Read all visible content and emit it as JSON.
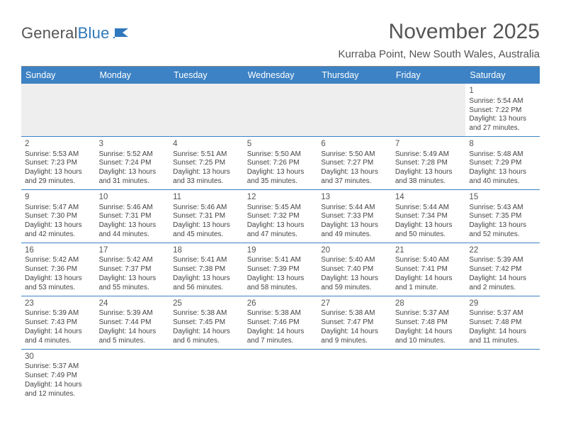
{
  "brand": {
    "part1": "General",
    "part2": "Blue"
  },
  "title": "November 2025",
  "location": "Kurraba Point, New South Wales, Australia",
  "colors": {
    "headerBar": "#3d82c4",
    "ruleBlue": "#3d82c4",
    "blankBg": "#eeeeee",
    "text": "#444",
    "title": "#555"
  },
  "dow": [
    "Sunday",
    "Monday",
    "Tuesday",
    "Wednesday",
    "Thursday",
    "Friday",
    "Saturday"
  ],
  "weeks": [
    [
      null,
      null,
      null,
      null,
      null,
      null,
      {
        "d": "1",
        "sr": "5:54 AM",
        "ss": "7:22 PM",
        "dl": "13 hours and 27 minutes."
      }
    ],
    [
      {
        "d": "2",
        "sr": "5:53 AM",
        "ss": "7:23 PM",
        "dl": "13 hours and 29 minutes."
      },
      {
        "d": "3",
        "sr": "5:52 AM",
        "ss": "7:24 PM",
        "dl": "13 hours and 31 minutes."
      },
      {
        "d": "4",
        "sr": "5:51 AM",
        "ss": "7:25 PM",
        "dl": "13 hours and 33 minutes."
      },
      {
        "d": "5",
        "sr": "5:50 AM",
        "ss": "7:26 PM",
        "dl": "13 hours and 35 minutes."
      },
      {
        "d": "6",
        "sr": "5:50 AM",
        "ss": "7:27 PM",
        "dl": "13 hours and 37 minutes."
      },
      {
        "d": "7",
        "sr": "5:49 AM",
        "ss": "7:28 PM",
        "dl": "13 hours and 38 minutes."
      },
      {
        "d": "8",
        "sr": "5:48 AM",
        "ss": "7:29 PM",
        "dl": "13 hours and 40 minutes."
      }
    ],
    [
      {
        "d": "9",
        "sr": "5:47 AM",
        "ss": "7:30 PM",
        "dl": "13 hours and 42 minutes."
      },
      {
        "d": "10",
        "sr": "5:46 AM",
        "ss": "7:31 PM",
        "dl": "13 hours and 44 minutes."
      },
      {
        "d": "11",
        "sr": "5:46 AM",
        "ss": "7:31 PM",
        "dl": "13 hours and 45 minutes."
      },
      {
        "d": "12",
        "sr": "5:45 AM",
        "ss": "7:32 PM",
        "dl": "13 hours and 47 minutes."
      },
      {
        "d": "13",
        "sr": "5:44 AM",
        "ss": "7:33 PM",
        "dl": "13 hours and 49 minutes."
      },
      {
        "d": "14",
        "sr": "5:44 AM",
        "ss": "7:34 PM",
        "dl": "13 hours and 50 minutes."
      },
      {
        "d": "15",
        "sr": "5:43 AM",
        "ss": "7:35 PM",
        "dl": "13 hours and 52 minutes."
      }
    ],
    [
      {
        "d": "16",
        "sr": "5:42 AM",
        "ss": "7:36 PM",
        "dl": "13 hours and 53 minutes."
      },
      {
        "d": "17",
        "sr": "5:42 AM",
        "ss": "7:37 PM",
        "dl": "13 hours and 55 minutes."
      },
      {
        "d": "18",
        "sr": "5:41 AM",
        "ss": "7:38 PM",
        "dl": "13 hours and 56 minutes."
      },
      {
        "d": "19",
        "sr": "5:41 AM",
        "ss": "7:39 PM",
        "dl": "13 hours and 58 minutes."
      },
      {
        "d": "20",
        "sr": "5:40 AM",
        "ss": "7:40 PM",
        "dl": "13 hours and 59 minutes."
      },
      {
        "d": "21",
        "sr": "5:40 AM",
        "ss": "7:41 PM",
        "dl": "14 hours and 1 minute."
      },
      {
        "d": "22",
        "sr": "5:39 AM",
        "ss": "7:42 PM",
        "dl": "14 hours and 2 minutes."
      }
    ],
    [
      {
        "d": "23",
        "sr": "5:39 AM",
        "ss": "7:43 PM",
        "dl": "14 hours and 4 minutes."
      },
      {
        "d": "24",
        "sr": "5:39 AM",
        "ss": "7:44 PM",
        "dl": "14 hours and 5 minutes."
      },
      {
        "d": "25",
        "sr": "5:38 AM",
        "ss": "7:45 PM",
        "dl": "14 hours and 6 minutes."
      },
      {
        "d": "26",
        "sr": "5:38 AM",
        "ss": "7:46 PM",
        "dl": "14 hours and 7 minutes."
      },
      {
        "d": "27",
        "sr": "5:38 AM",
        "ss": "7:47 PM",
        "dl": "14 hours and 9 minutes."
      },
      {
        "d": "28",
        "sr": "5:37 AM",
        "ss": "7:48 PM",
        "dl": "14 hours and 10 minutes."
      },
      {
        "d": "29",
        "sr": "5:37 AM",
        "ss": "7:48 PM",
        "dl": "14 hours and 11 minutes."
      }
    ],
    [
      {
        "d": "30",
        "sr": "5:37 AM",
        "ss": "7:49 PM",
        "dl": "14 hours and 12 minutes."
      },
      null,
      null,
      null,
      null,
      null,
      null
    ]
  ],
  "labels": {
    "sunrise": "Sunrise:",
    "sunset": "Sunset:",
    "daylight": "Daylight:"
  }
}
